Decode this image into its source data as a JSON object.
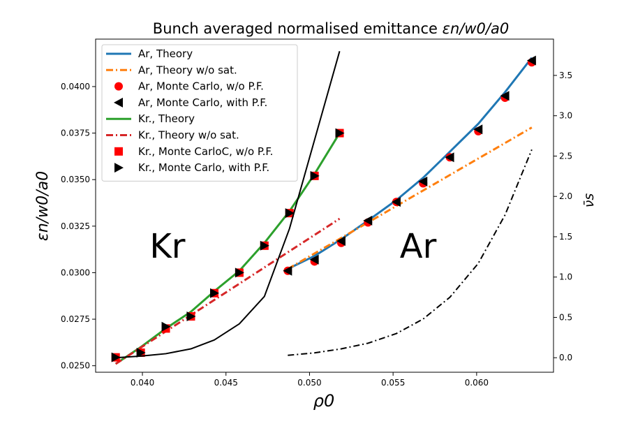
{
  "chart_data": {
    "type": "line",
    "title": "Bunch averaged normalised emittance ε_n/w_0/a_0",
    "title_main": "Bunch averaged normalised emittance ",
    "title_math": "εn/w0/a0",
    "xlabel": "ρ0",
    "ylabel": "εn/w0/a0",
    "y2label": "ν̄s",
    "xlim": [
      0.0372,
      0.0646
    ],
    "ylim": [
      0.02465,
      0.04255
    ],
    "y2lim": [
      -0.18,
      3.95
    ],
    "x_ticks": [
      0.04,
      0.045,
      0.05,
      0.055,
      0.06
    ],
    "x_tick_labels": [
      "0.040",
      "0.045",
      "0.050",
      "0.055",
      "0.060"
    ],
    "y_ticks": [
      0.025,
      0.0275,
      0.03,
      0.0325,
      0.035,
      0.0375,
      0.04
    ],
    "y_tick_labels": [
      "0.0250",
      "0.0275",
      "0.0300",
      "0.0325",
      "0.0350",
      "0.0375",
      "0.0400"
    ],
    "y2_ticks": [
      0.0,
      0.5,
      1.0,
      1.5,
      2.0,
      2.5,
      3.0,
      3.5
    ],
    "y2_tick_labels": [
      "0.0",
      "0.5",
      "1.0",
      "1.5",
      "2.0",
      "2.5",
      "3.0",
      "3.5"
    ],
    "legend_position": "upper-left",
    "annotations": [
      {
        "text": "Kr",
        "x": 0.0415,
        "y": 0.0308
      },
      {
        "text": "Ar",
        "x": 0.0565,
        "y": 0.0308
      }
    ],
    "series": [
      {
        "name": "Ar, Theory",
        "kind": "line",
        "style": "solid",
        "color": "#1f77b4",
        "axis": "left",
        "x": [
          0.0487,
          0.0503,
          0.0519,
          0.0535,
          0.0552,
          0.0568,
          0.0584,
          0.0601,
          0.0617,
          0.0633
        ],
        "y": [
          0.0302,
          0.0309,
          0.0318,
          0.0328,
          0.0339,
          0.0351,
          0.0365,
          0.038,
          0.0397,
          0.04155
        ]
      },
      {
        "name": "Ar, Theory w/o sat.",
        "kind": "line",
        "style": "dashdot",
        "color": "#ff7f0e",
        "axis": "left",
        "x": [
          0.0487,
          0.0633
        ],
        "y": [
          0.0302,
          0.0378
        ]
      },
      {
        "name": "Ar, Monte Carlo, w/o P.F.",
        "kind": "marker",
        "marker": "circle",
        "color": "#ff0000",
        "axis": "left",
        "x": [
          0.0487,
          0.0503,
          0.0519,
          0.0535,
          0.0552,
          0.0568,
          0.0584,
          0.0601,
          0.0617,
          0.0633
        ],
        "y": [
          0.0301,
          0.0306,
          0.0316,
          0.0327,
          0.0338,
          0.0348,
          0.0362,
          0.0376,
          0.0394,
          0.0413
        ]
      },
      {
        "name": "Ar, Monte Carlo, with P.F.",
        "kind": "marker",
        "marker": "triangle-left",
        "color": "#000000",
        "axis": "left",
        "x": [
          0.0487,
          0.0503,
          0.0519,
          0.0535,
          0.0552,
          0.0568,
          0.0584,
          0.0601,
          0.0617,
          0.0633
        ],
        "y": [
          0.0301,
          0.0307,
          0.0317,
          0.0328,
          0.0338,
          0.0349,
          0.0362,
          0.0377,
          0.0395,
          0.0414
        ]
      },
      {
        "name": "Kr., Theory",
        "kind": "line",
        "style": "solid",
        "color": "#2ca02c",
        "axis": "left",
        "x": [
          0.0384,
          0.0399,
          0.0414,
          0.0429,
          0.0443,
          0.0458,
          0.0473,
          0.0488,
          0.0503,
          0.0518
        ],
        "y": [
          0.0251,
          0.026,
          0.027,
          0.0279,
          0.029,
          0.0301,
          0.0316,
          0.0333,
          0.0353,
          0.0375
        ]
      },
      {
        "name": "Kr., Theory w/o sat.",
        "kind": "line",
        "style": "dashdot",
        "color": "#d62728",
        "axis": "left",
        "x": [
          0.0384,
          0.0518
        ],
        "y": [
          0.0251,
          0.0329
        ]
      },
      {
        "name": "Kr., Monte CarloC, w/o P.F.",
        "kind": "marker",
        "marker": "square",
        "color": "#ff0000",
        "axis": "left",
        "x": [
          0.0384,
          0.0399,
          0.0414,
          0.0429,
          0.0443,
          0.0458,
          0.0473,
          0.0488,
          0.0503,
          0.0518
        ],
        "y": [
          0.02545,
          0.0257,
          0.027,
          0.02765,
          0.0289,
          0.03,
          0.03145,
          0.0332,
          0.0352,
          0.0375
        ]
      },
      {
        "name": "Kr., Monte Carlo, with P.F.",
        "kind": "marker",
        "marker": "triangle-right",
        "color": "#000000",
        "axis": "left",
        "x": [
          0.0384,
          0.0399,
          0.0414,
          0.0429,
          0.0443,
          0.0458,
          0.0473,
          0.0488,
          0.0503,
          0.0518
        ],
        "y": [
          0.02545,
          0.0257,
          0.0271,
          0.02765,
          0.0289,
          0.03,
          0.03145,
          0.0332,
          0.0352,
          0.0375
        ]
      },
      {
        "name": "Kr ν̄s",
        "kind": "line",
        "style": "solid",
        "color": "#000000",
        "axis": "right",
        "in_legend": false,
        "x": [
          0.0384,
          0.0399,
          0.0414,
          0.0429,
          0.0443,
          0.0458,
          0.0473,
          0.0488,
          0.0503,
          0.0518
        ],
        "y": [
          0.0,
          0.02,
          0.05,
          0.11,
          0.22,
          0.42,
          0.76,
          1.6,
          2.7,
          3.8
        ]
      },
      {
        "name": "Ar ν̄s",
        "kind": "line",
        "style": "dashdot",
        "color": "#000000",
        "axis": "right",
        "in_legend": false,
        "x": [
          0.0487,
          0.0503,
          0.0519,
          0.0535,
          0.0552,
          0.0568,
          0.0584,
          0.0601,
          0.0617,
          0.0633
        ],
        "y": [
          0.03,
          0.06,
          0.11,
          0.18,
          0.3,
          0.48,
          0.75,
          1.17,
          1.77,
          2.58
        ]
      }
    ]
  }
}
